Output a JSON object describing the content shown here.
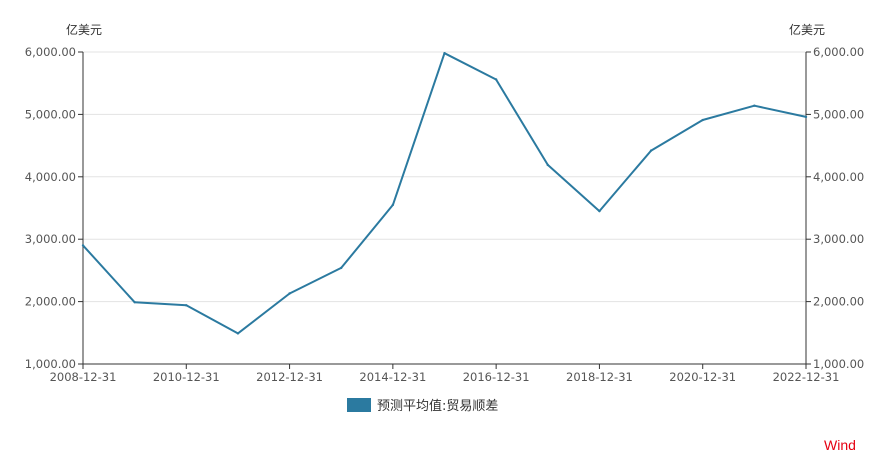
{
  "chart_data": {
    "type": "line",
    "left_unit": "亿美元",
    "right_unit": "亿美元",
    "x_tick_labels": [
      "2008-12-31",
      "2010-12-31",
      "2012-12-31",
      "2014-12-31",
      "2016-12-31",
      "2018-12-31",
      "2020-12-31",
      "2022-12-31"
    ],
    "y_tick_labels": [
      "1,000.00",
      "2,000.00",
      "3,000.00",
      "4,000.00",
      "5,000.00",
      "6,000.00"
    ],
    "y_ticks": [
      1000,
      2000,
      3000,
      4000,
      5000,
      6000
    ],
    "ylim": [
      1000,
      6000
    ],
    "xlim": [
      2008,
      2022
    ],
    "grid": true,
    "legend_position": "bottom-center",
    "series": [
      {
        "name": "预测平均值:贸易顺差",
        "color": "#2b7aa0",
        "x": [
          2008,
          2009,
          2010,
          2011,
          2012,
          2013,
          2014,
          2015,
          2016,
          2017,
          2018,
          2019,
          2020,
          2021,
          2022
        ],
        "values": [
          2900,
          1990,
          1940,
          1490,
          2130,
          2540,
          3550,
          5980,
          5560,
          4190,
          3450,
          4420,
          4910,
          5140,
          4960
        ]
      }
    ]
  },
  "brand": "Wind"
}
